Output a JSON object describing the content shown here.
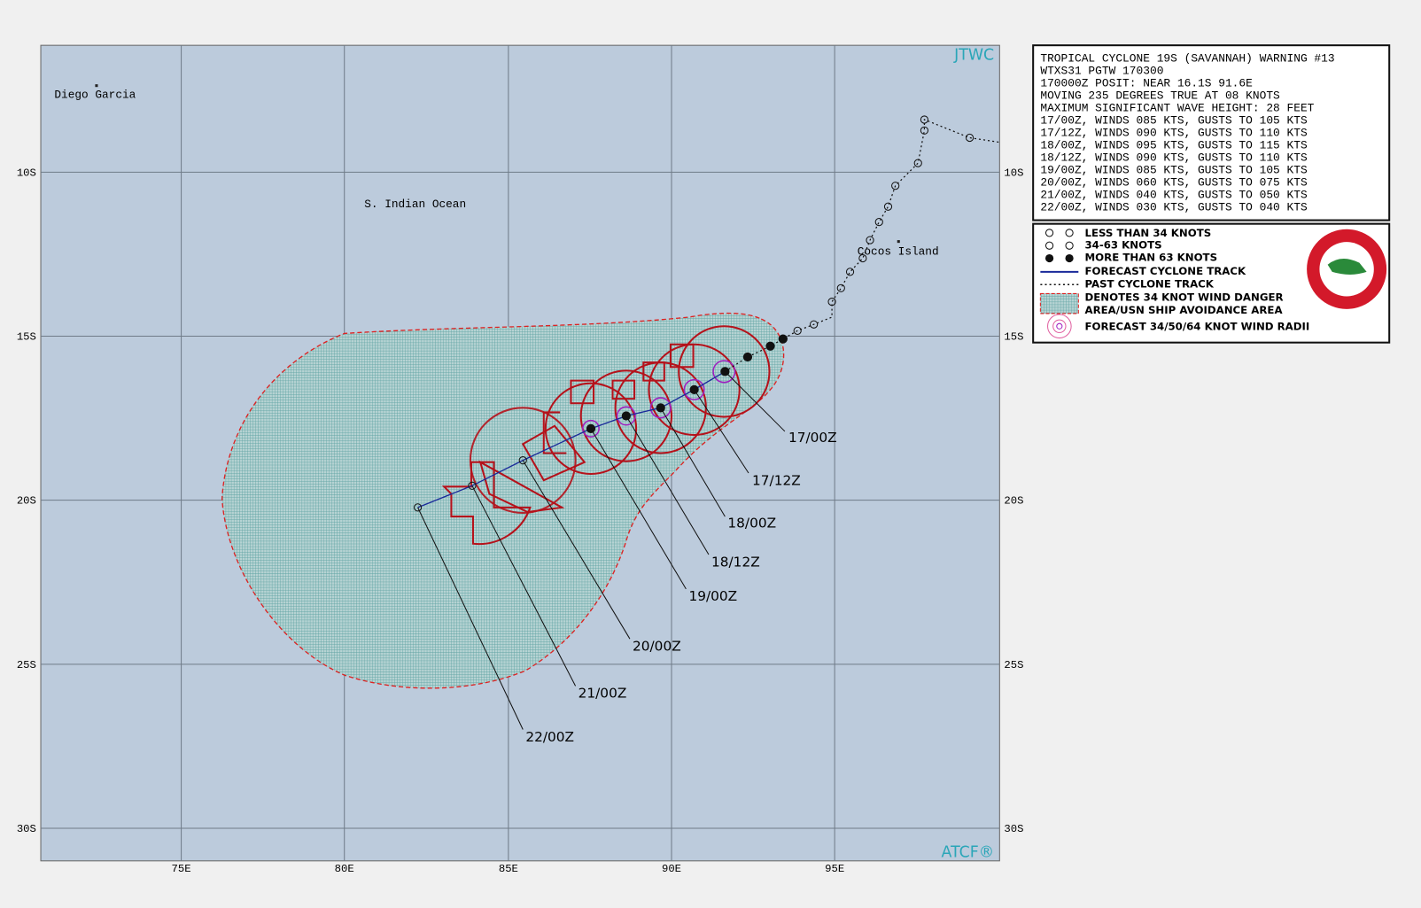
{
  "map": {
    "source": "JTWC",
    "credit": "ATCF®",
    "places": [
      "Diego Garcia",
      "S. Indian Ocean",
      "Cocos Island"
    ],
    "lon_ticks": [
      "75E",
      "80E",
      "85E",
      "90E",
      "95E"
    ],
    "lat_ticks": [
      "10S",
      "15S",
      "20S",
      "25S",
      "30S"
    ],
    "forecast_labels": [
      "17/00Z",
      "17/12Z",
      "18/00Z",
      "18/12Z",
      "19/00Z",
      "20/00Z",
      "21/00Z",
      "22/00Z"
    ]
  },
  "warning": {
    "lines": [
      "TROPICAL CYCLONE 19S (SAVANNAH) WARNING #13",
      "WTXS31 PGTW 170300",
      "170000Z POSIT: NEAR 16.1S 91.6E",
      "MOVING 235 DEGREES TRUE AT 08 KNOTS",
      "MAXIMUM SIGNIFICANT WAVE HEIGHT: 28 FEET",
      "17/00Z, WINDS 085 KTS, GUSTS TO 105 KTS",
      "17/12Z, WINDS 090 KTS, GUSTS TO 110 KTS",
      "18/00Z, WINDS 095 KTS, GUSTS TO 115 KTS",
      "18/12Z, WINDS 090 KTS, GUSTS TO 110 KTS",
      "19/00Z, WINDS 085 KTS, GUSTS TO 105 KTS",
      "20/00Z, WINDS 060 KTS, GUSTS TO 075 KTS",
      "21/00Z, WINDS 040 KTS, GUSTS TO 050 KTS",
      "22/00Z, WINDS 030 KTS, GUSTS TO 040 KTS"
    ]
  },
  "legend": {
    "items": [
      "LESS THAN 34 KNOTS",
      "34-63 KNOTS",
      "MORE THAN 63 KNOTS",
      "FORECAST CYCLONE TRACK",
      "PAST CYCLONE TRACK",
      "DENOTES 34 KNOT WIND DANGER",
      "AREA/USN SHIP AVOIDANCE AREA",
      "FORECAST 34/50/64 KNOT WIND RADII"
    ]
  }
}
